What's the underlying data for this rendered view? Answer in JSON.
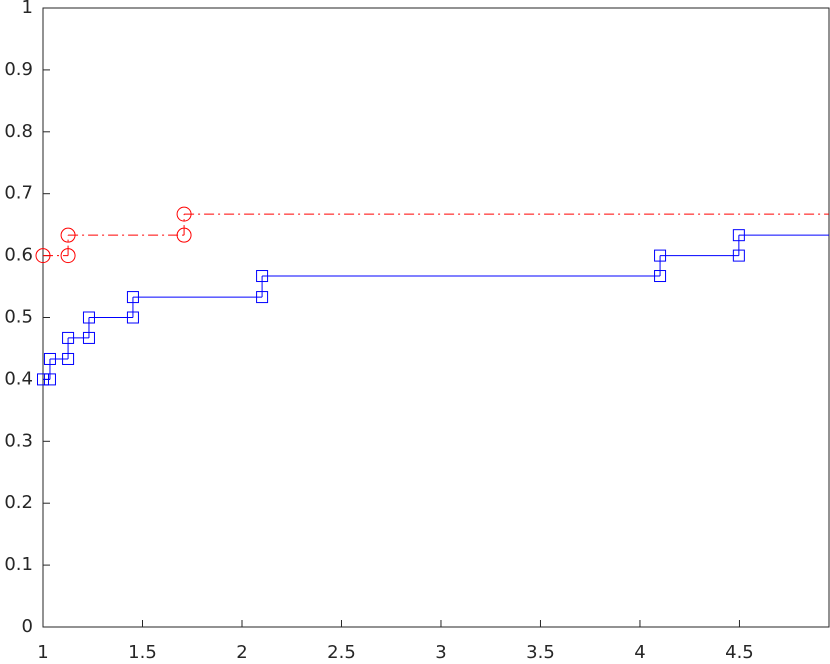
{
  "chart_data": {
    "type": "stairs",
    "xlim": [
      1,
      4.95
    ],
    "ylim": [
      0,
      1
    ],
    "xticks": [
      1,
      1.5,
      2,
      2.5,
      3,
      3.5,
      4,
      4.5
    ],
    "yticks": [
      0,
      0.1,
      0.2,
      0.3,
      0.4,
      0.5,
      0.6,
      0.7,
      0.8,
      0.9,
      1
    ],
    "series": [
      {
        "color": "#0000ff",
        "marker": "square",
        "line_style": "solid",
        "x": [
          1.0,
          1.035,
          1.126,
          1.231,
          1.452,
          2.101,
          4.101,
          4.497
        ],
        "values": [
          0.4,
          0.433,
          0.467,
          0.5,
          0.533,
          0.567,
          0.6,
          0.633
        ]
      },
      {
        "color": "#ff0000",
        "marker": "circle",
        "line_style": "dashdot",
        "x": [
          1.0,
          1.126,
          1.709
        ],
        "values": [
          0.6,
          0.633,
          0.667
        ]
      }
    ]
  }
}
